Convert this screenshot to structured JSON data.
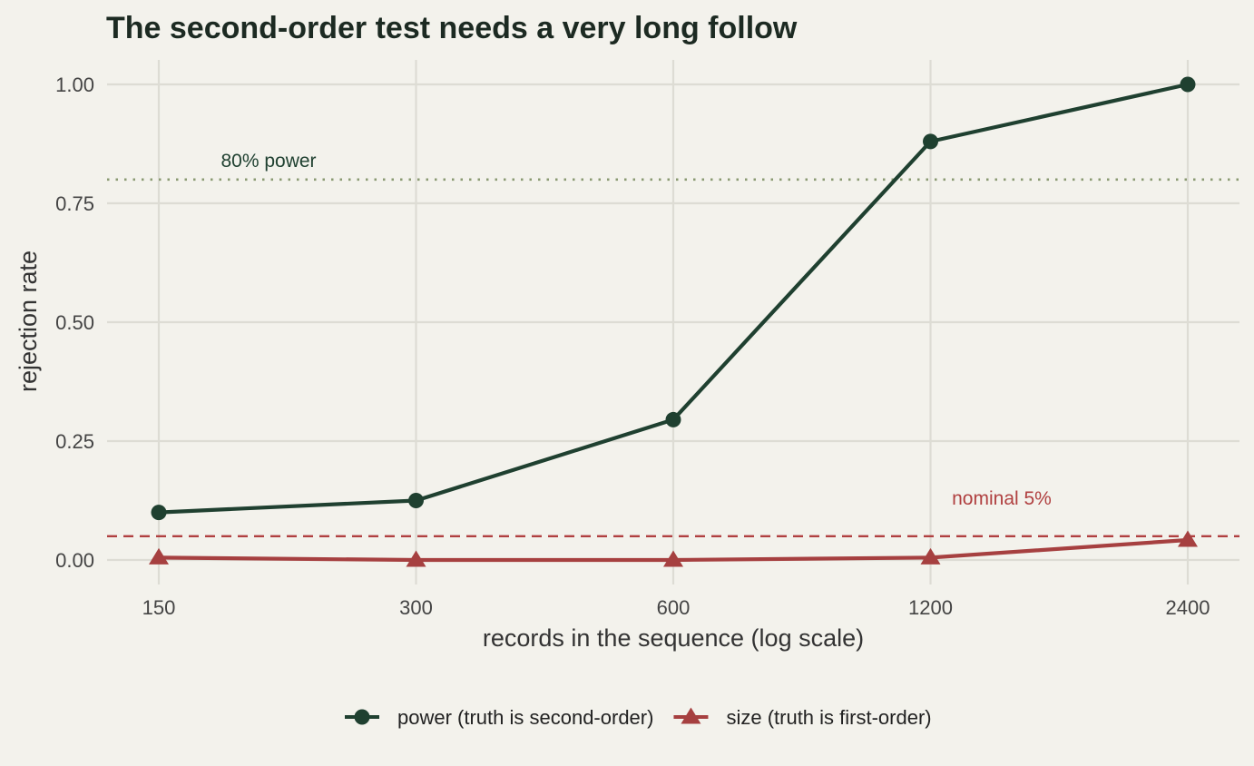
{
  "chart_data": {
    "type": "line",
    "title": "The second-order test needs a very long follow",
    "xlabel": "records in the sequence (log scale)",
    "ylabel": "rejection rate",
    "x_scale": "log",
    "x": [
      150,
      300,
      600,
      1200,
      2400
    ],
    "x_tick_labels": [
      "150",
      "300",
      "600",
      "1200",
      "2400"
    ],
    "y_ticks": [
      0,
      0.25,
      0.5,
      0.75,
      1
    ],
    "y_tick_labels": [
      "0.00",
      "0.25",
      "0.50",
      "0.75",
      "1.00"
    ],
    "ylim": [
      -0.02,
      1.05
    ],
    "grid": true,
    "legend_position": "bottom",
    "series": [
      {
        "name": "power (truth is second-order)",
        "values": [
          0.1,
          0.125,
          0.295,
          0.88,
          1.0
        ],
        "color": "#1f4030",
        "marker": "circle"
      },
      {
        "name": "size (truth is first-order)",
        "values": [
          0.005,
          0.0,
          0.0,
          0.005,
          0.042
        ],
        "color": "#a64040",
        "marker": "triangle"
      }
    ],
    "reference_lines": [
      {
        "y": 0.8,
        "label": "80% power",
        "color": "#8a9a72",
        "style": "dotted",
        "label_color": "#1f4030"
      },
      {
        "y": 0.05,
        "label": "nominal 5%",
        "color": "#b04040",
        "style": "dashed",
        "label_color": "#b04040"
      }
    ]
  }
}
